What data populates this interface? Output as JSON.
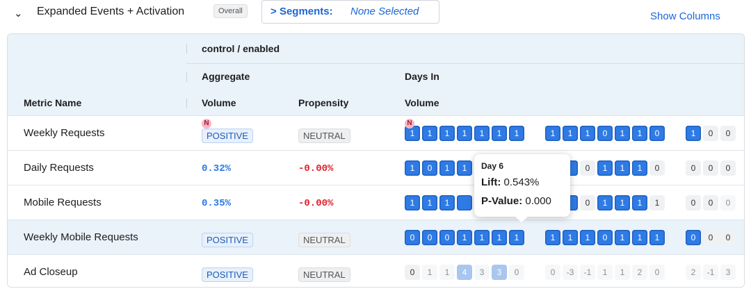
{
  "header": {
    "title": "Expanded Events + Activation",
    "scope": "Overall",
    "segments_label": "Segments:",
    "segments_value": "None Selected",
    "show_columns": "Show Columns"
  },
  "table": {
    "group_header": "control / enabled",
    "sub_headers": [
      "Aggregate",
      "Days In"
    ],
    "columns": [
      "Metric Name",
      "Volume",
      "Propensity",
      "Volume"
    ],
    "rows": [
      {
        "name": "Weekly Requests",
        "flag": "N",
        "volume": {
          "text": "POSITIVE",
          "style": "pos-badge"
        },
        "propensity": {
          "text": "NEUTRAL",
          "style": "neu-badge"
        },
        "days": [
          [
            {
              "v": 1,
              "s": "b",
              "flag": "N"
            },
            {
              "v": 1,
              "s": "b"
            },
            {
              "v": 1,
              "s": "b"
            },
            {
              "v": 1,
              "s": "b"
            },
            {
              "v": 1,
              "s": "b"
            },
            {
              "v": 1,
              "s": "b"
            },
            {
              "v": 1,
              "s": "b"
            }
          ],
          [
            {
              "v": 1,
              "s": "b"
            },
            {
              "v": 1,
              "s": "b"
            },
            {
              "v": 1,
              "s": "b"
            },
            {
              "v": 0,
              "s": "b"
            },
            {
              "v": 1,
              "s": "b"
            },
            {
              "v": 1,
              "s": "b"
            },
            {
              "v": 0,
              "s": "b"
            }
          ],
          [
            {
              "v": 1,
              "s": "b"
            },
            {
              "v": 0,
              "s": "g"
            },
            {
              "v": 0,
              "s": "g"
            }
          ]
        ]
      },
      {
        "name": "Daily Requests",
        "volume": {
          "text": "0.32%",
          "style": "pos"
        },
        "propensity": {
          "text": "-0.00%",
          "style": "neg"
        },
        "days": [
          [
            {
              "v": 1,
              "s": "b"
            },
            {
              "v": 0,
              "s": "b"
            },
            {
              "v": 1,
              "s": "b"
            },
            {
              "v": 1,
              "s": "b"
            },
            {
              "v": null,
              "s": "b"
            },
            {
              "v": null,
              "s": "b"
            },
            {
              "v": null,
              "s": "b"
            }
          ],
          [
            {
              "v": null,
              "s": "b"
            },
            {
              "v": null,
              "s": "b"
            },
            {
              "v": 0,
              "s": "g"
            },
            {
              "v": 1,
              "s": "b"
            },
            {
              "v": 1,
              "s": "b"
            },
            {
              "v": 1,
              "s": "b"
            },
            {
              "v": 0,
              "s": "g"
            }
          ],
          [
            {
              "v": 0,
              "s": "g"
            },
            {
              "v": 0,
              "s": "g"
            },
            {
              "v": 0,
              "s": "g"
            }
          ]
        ]
      },
      {
        "name": "Mobile Requests",
        "volume": {
          "text": "0.35%",
          "style": "pos"
        },
        "propensity": {
          "text": "-0.00%",
          "style": "neg"
        },
        "days": [
          [
            {
              "v": 1,
              "s": "b"
            },
            {
              "v": 1,
              "s": "b"
            },
            {
              "v": 1,
              "s": "b"
            },
            {
              "v": null,
              "s": "b"
            },
            {
              "v": null,
              "s": "b"
            },
            {
              "v": null,
              "s": "b"
            },
            {
              "v": null,
              "s": "b"
            }
          ],
          [
            {
              "v": null,
              "s": "b"
            },
            {
              "v": null,
              "s": "b"
            },
            {
              "v": 0,
              "s": "g"
            },
            {
              "v": 1,
              "s": "b"
            },
            {
              "v": 1,
              "s": "b"
            },
            {
              "v": 1,
              "s": "b"
            },
            {
              "v": 1,
              "s": "g"
            }
          ],
          [
            {
              "v": 0,
              "s": "g"
            },
            {
              "v": 0,
              "s": "g"
            },
            {
              "v": 0,
              "s": "f"
            }
          ]
        ]
      },
      {
        "name": "Weekly Mobile Requests",
        "selected": true,
        "volume": {
          "text": "POSITIVE",
          "style": "pos-badge"
        },
        "propensity": {
          "text": "NEUTRAL",
          "style": "neu-badge"
        },
        "days": [
          [
            {
              "v": 0,
              "s": "b"
            },
            {
              "v": 0,
              "s": "b"
            },
            {
              "v": 0,
              "s": "b"
            },
            {
              "v": 1,
              "s": "b"
            },
            {
              "v": 1,
              "s": "b"
            },
            {
              "v": 1,
              "s": "b"
            },
            {
              "v": 1,
              "s": "b"
            }
          ],
          [
            {
              "v": 1,
              "s": "b"
            },
            {
              "v": 1,
              "s": "b"
            },
            {
              "v": 1,
              "s": "b"
            },
            {
              "v": 0,
              "s": "b"
            },
            {
              "v": 1,
              "s": "b"
            },
            {
              "v": 1,
              "s": "b"
            },
            {
              "v": 1,
              "s": "b"
            }
          ],
          [
            {
              "v": 0,
              "s": "b"
            },
            {
              "v": 0,
              "s": "g"
            },
            {
              "v": 0,
              "s": "g"
            }
          ]
        ]
      },
      {
        "name": "Ad Closeup",
        "volume": {
          "text": "POSITIVE",
          "style": "pos-badge"
        },
        "propensity": {
          "text": "NEUTRAL",
          "style": "neu-badge"
        },
        "days": [
          [
            {
              "v": 0,
              "s": "g"
            },
            {
              "v": 1,
              "s": "f"
            },
            {
              "v": 1,
              "s": "f"
            },
            {
              "v": 4,
              "s": "p"
            },
            {
              "v": 3,
              "s": "f"
            },
            {
              "v": 3,
              "s": "p"
            },
            {
              "v": 0,
              "s": "f"
            }
          ],
          [
            {
              "v": 0,
              "s": "f"
            },
            {
              "v": -3,
              "s": "f"
            },
            {
              "v": -1,
              "s": "f"
            },
            {
              "v": 1,
              "s": "f"
            },
            {
              "v": 1,
              "s": "f"
            },
            {
              "v": 2,
              "s": "f"
            },
            {
              "v": 0,
              "s": "f"
            }
          ],
          [
            {
              "v": 2,
              "s": "f"
            },
            {
              "v": -1,
              "s": "f"
            },
            {
              "v": 3,
              "s": "f"
            }
          ]
        ]
      }
    ]
  },
  "tooltip": {
    "title": "Day 6",
    "lift_label": "Lift:",
    "lift": "0.543%",
    "pvalue_label": "P-Value:",
    "pvalue": "0.000"
  }
}
